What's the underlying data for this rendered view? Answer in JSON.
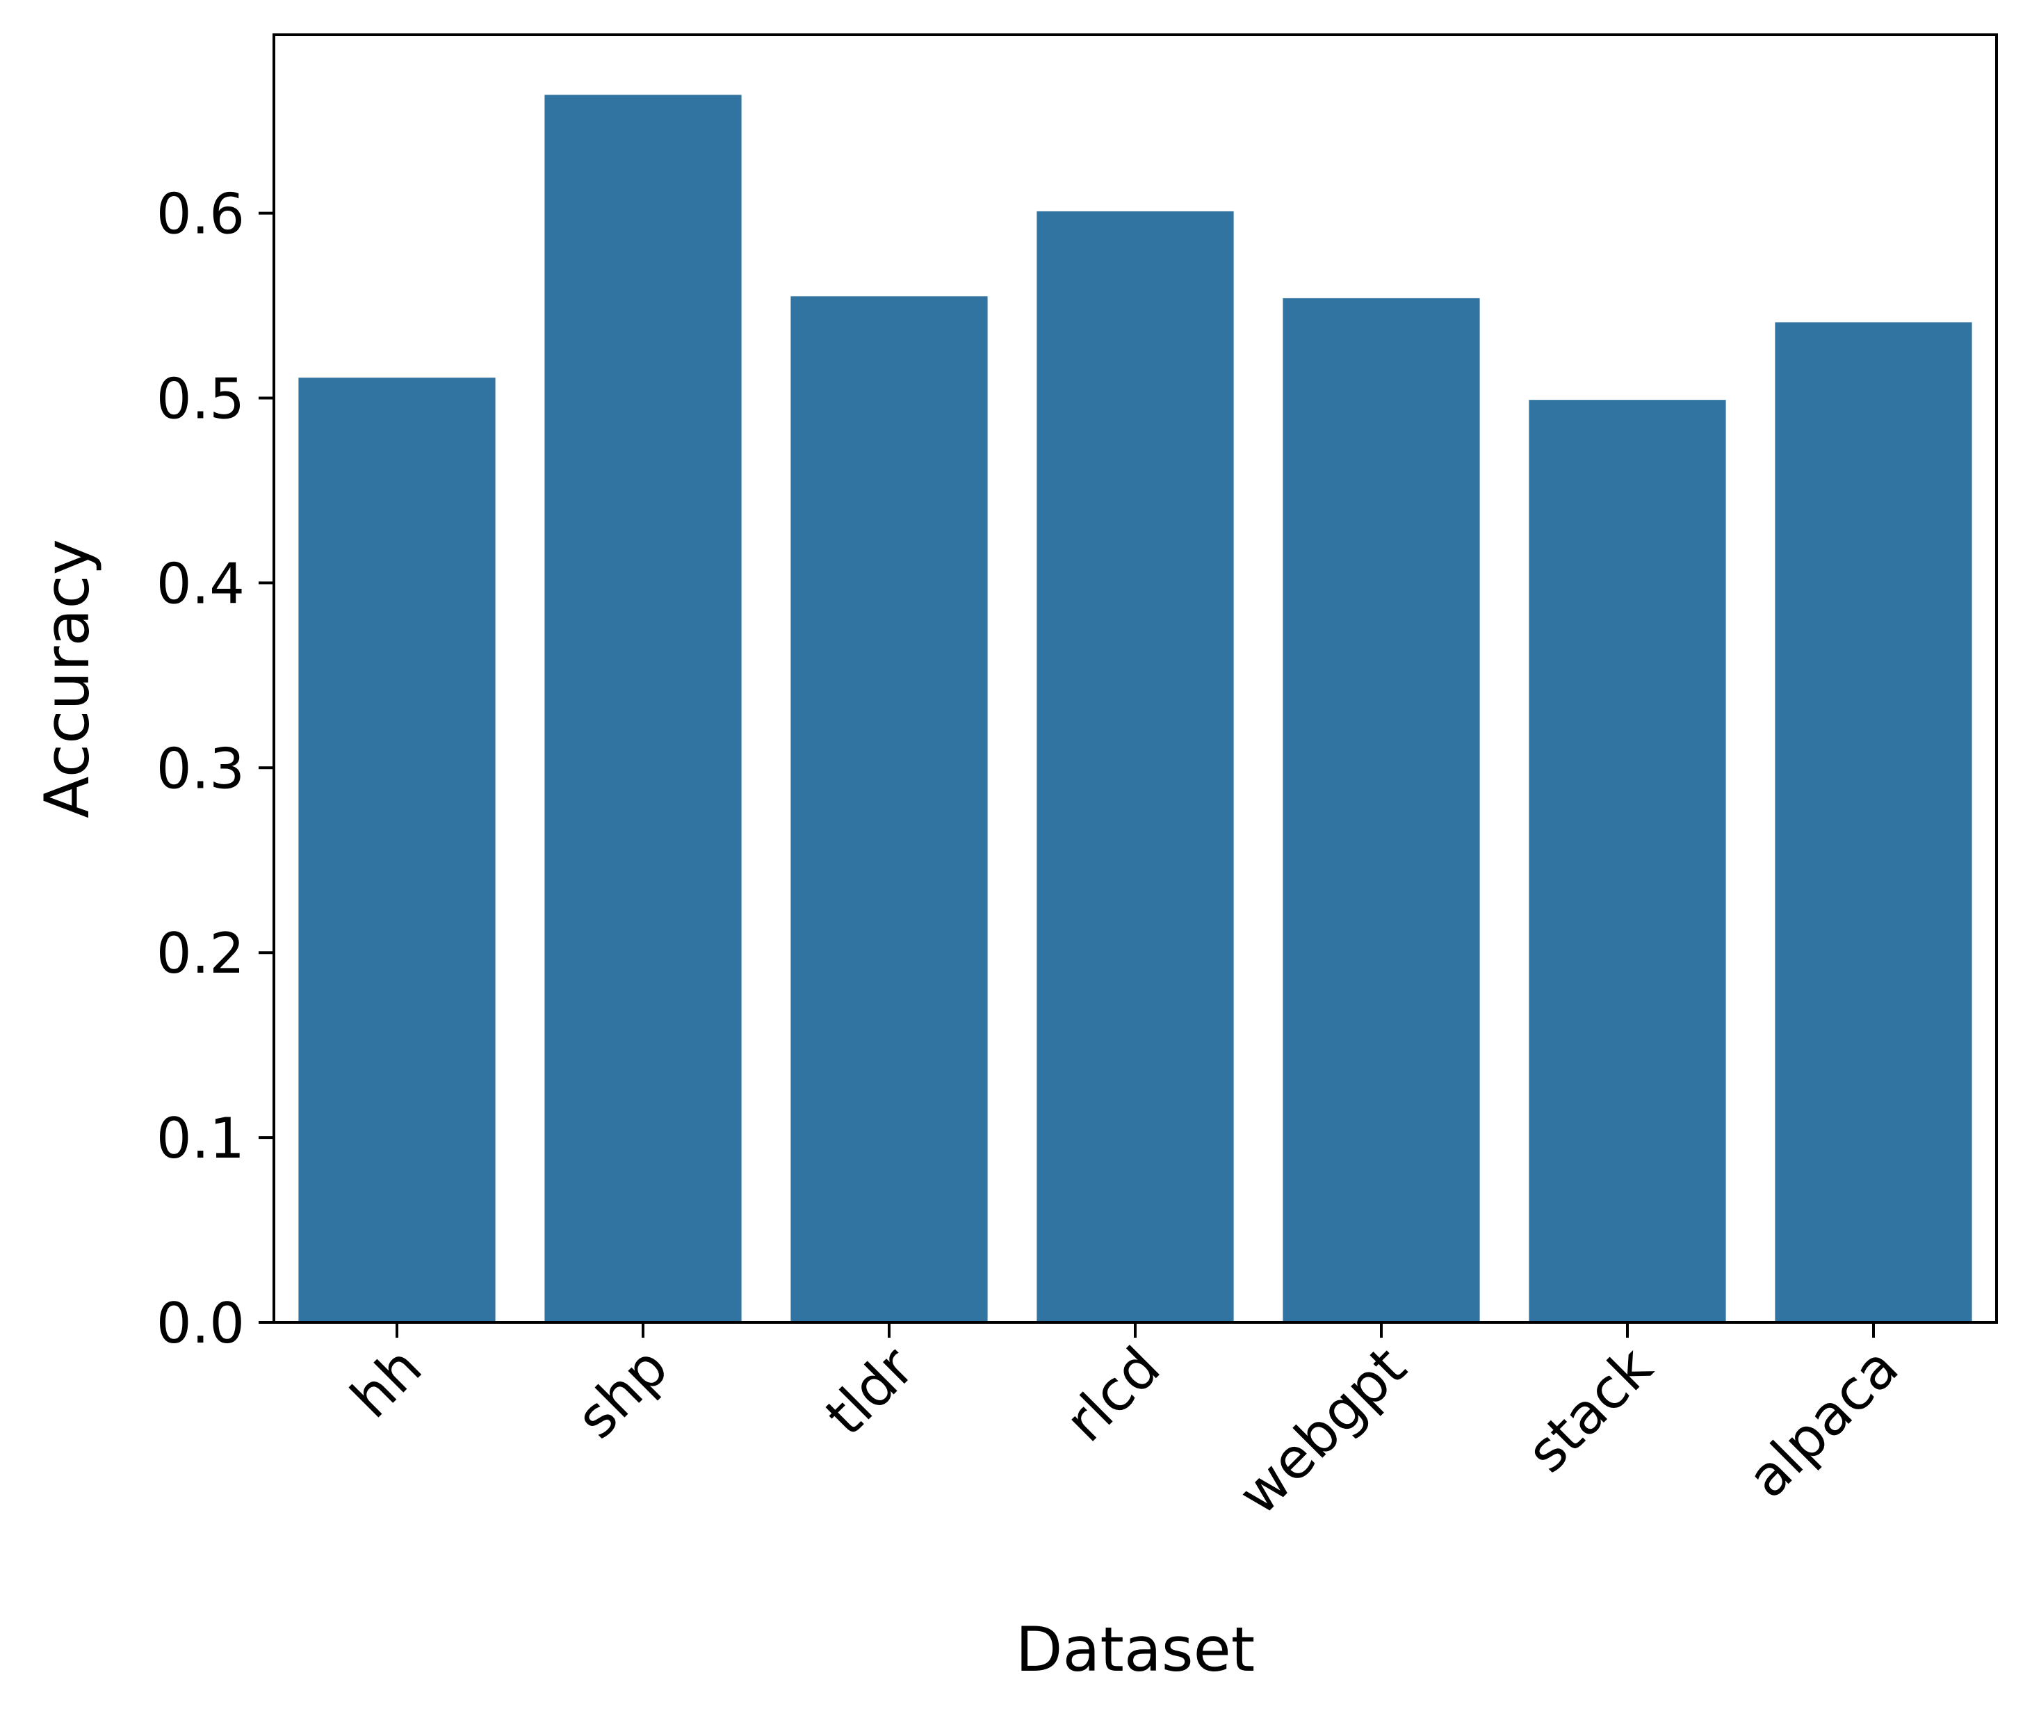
{
  "chart_data": {
    "type": "bar",
    "title": "",
    "xlabel": "Dataset",
    "ylabel": "Accuracy",
    "categories": [
      "hh",
      "shp",
      "tldr",
      "rlcd",
      "webgpt",
      "stack",
      "alpaca"
    ],
    "values": [
      0.511,
      0.664,
      0.555,
      0.601,
      0.554,
      0.499,
      0.541
    ],
    "ylim": [
      0,
      0.6965
    ],
    "yticks": [
      0.0,
      0.1,
      0.2,
      0.3,
      0.4,
      0.5,
      0.6
    ],
    "ytick_labels": [
      "0.0",
      "0.1",
      "0.2",
      "0.3",
      "0.4",
      "0.5",
      "0.6"
    ],
    "bar_color": "#3274a1",
    "grid": false,
    "legend": "none"
  }
}
